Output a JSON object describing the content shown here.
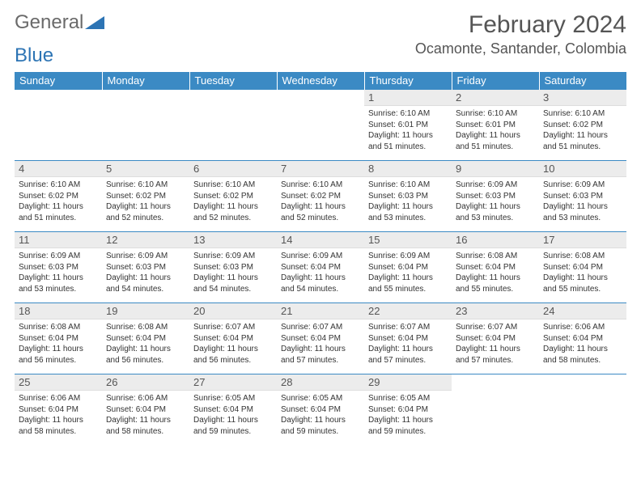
{
  "logo": {
    "text_general": "General",
    "text_blue": "Blue",
    "triangle_color": "#2d74b4"
  },
  "header": {
    "month_title": "February 2024",
    "location": "Ocamonte, Santander, Colombia"
  },
  "styling": {
    "header_bg": "#3b8ac4",
    "header_text": "#ffffff",
    "daynum_bg": "#ececec",
    "row_border": "#3b8ac4",
    "body_text": "#333333",
    "title_color": "#555555",
    "title_fontsize": 30,
    "location_fontsize": 18,
    "dayheader_fontsize": 13,
    "cell_fontsize": 10
  },
  "day_headers": [
    "Sunday",
    "Monday",
    "Tuesday",
    "Wednesday",
    "Thursday",
    "Friday",
    "Saturday"
  ],
  "weeks": [
    [
      {
        "empty": true
      },
      {
        "empty": true
      },
      {
        "empty": true
      },
      {
        "empty": true
      },
      {
        "day": "1",
        "sunrise": "Sunrise: 6:10 AM",
        "sunset": "Sunset: 6:01 PM",
        "daylight1": "Daylight: 11 hours",
        "daylight2": "and 51 minutes."
      },
      {
        "day": "2",
        "sunrise": "Sunrise: 6:10 AM",
        "sunset": "Sunset: 6:01 PM",
        "daylight1": "Daylight: 11 hours",
        "daylight2": "and 51 minutes."
      },
      {
        "day": "3",
        "sunrise": "Sunrise: 6:10 AM",
        "sunset": "Sunset: 6:02 PM",
        "daylight1": "Daylight: 11 hours",
        "daylight2": "and 51 minutes."
      }
    ],
    [
      {
        "day": "4",
        "sunrise": "Sunrise: 6:10 AM",
        "sunset": "Sunset: 6:02 PM",
        "daylight1": "Daylight: 11 hours",
        "daylight2": "and 51 minutes."
      },
      {
        "day": "5",
        "sunrise": "Sunrise: 6:10 AM",
        "sunset": "Sunset: 6:02 PM",
        "daylight1": "Daylight: 11 hours",
        "daylight2": "and 52 minutes."
      },
      {
        "day": "6",
        "sunrise": "Sunrise: 6:10 AM",
        "sunset": "Sunset: 6:02 PM",
        "daylight1": "Daylight: 11 hours",
        "daylight2": "and 52 minutes."
      },
      {
        "day": "7",
        "sunrise": "Sunrise: 6:10 AM",
        "sunset": "Sunset: 6:02 PM",
        "daylight1": "Daylight: 11 hours",
        "daylight2": "and 52 minutes."
      },
      {
        "day": "8",
        "sunrise": "Sunrise: 6:10 AM",
        "sunset": "Sunset: 6:03 PM",
        "daylight1": "Daylight: 11 hours",
        "daylight2": "and 53 minutes."
      },
      {
        "day": "9",
        "sunrise": "Sunrise: 6:09 AM",
        "sunset": "Sunset: 6:03 PM",
        "daylight1": "Daylight: 11 hours",
        "daylight2": "and 53 minutes."
      },
      {
        "day": "10",
        "sunrise": "Sunrise: 6:09 AM",
        "sunset": "Sunset: 6:03 PM",
        "daylight1": "Daylight: 11 hours",
        "daylight2": "and 53 minutes."
      }
    ],
    [
      {
        "day": "11",
        "sunrise": "Sunrise: 6:09 AM",
        "sunset": "Sunset: 6:03 PM",
        "daylight1": "Daylight: 11 hours",
        "daylight2": "and 53 minutes."
      },
      {
        "day": "12",
        "sunrise": "Sunrise: 6:09 AM",
        "sunset": "Sunset: 6:03 PM",
        "daylight1": "Daylight: 11 hours",
        "daylight2": "and 54 minutes."
      },
      {
        "day": "13",
        "sunrise": "Sunrise: 6:09 AM",
        "sunset": "Sunset: 6:03 PM",
        "daylight1": "Daylight: 11 hours",
        "daylight2": "and 54 minutes."
      },
      {
        "day": "14",
        "sunrise": "Sunrise: 6:09 AM",
        "sunset": "Sunset: 6:04 PM",
        "daylight1": "Daylight: 11 hours",
        "daylight2": "and 54 minutes."
      },
      {
        "day": "15",
        "sunrise": "Sunrise: 6:09 AM",
        "sunset": "Sunset: 6:04 PM",
        "daylight1": "Daylight: 11 hours",
        "daylight2": "and 55 minutes."
      },
      {
        "day": "16",
        "sunrise": "Sunrise: 6:08 AM",
        "sunset": "Sunset: 6:04 PM",
        "daylight1": "Daylight: 11 hours",
        "daylight2": "and 55 minutes."
      },
      {
        "day": "17",
        "sunrise": "Sunrise: 6:08 AM",
        "sunset": "Sunset: 6:04 PM",
        "daylight1": "Daylight: 11 hours",
        "daylight2": "and 55 minutes."
      }
    ],
    [
      {
        "day": "18",
        "sunrise": "Sunrise: 6:08 AM",
        "sunset": "Sunset: 6:04 PM",
        "daylight1": "Daylight: 11 hours",
        "daylight2": "and 56 minutes."
      },
      {
        "day": "19",
        "sunrise": "Sunrise: 6:08 AM",
        "sunset": "Sunset: 6:04 PM",
        "daylight1": "Daylight: 11 hours",
        "daylight2": "and 56 minutes."
      },
      {
        "day": "20",
        "sunrise": "Sunrise: 6:07 AM",
        "sunset": "Sunset: 6:04 PM",
        "daylight1": "Daylight: 11 hours",
        "daylight2": "and 56 minutes."
      },
      {
        "day": "21",
        "sunrise": "Sunrise: 6:07 AM",
        "sunset": "Sunset: 6:04 PM",
        "daylight1": "Daylight: 11 hours",
        "daylight2": "and 57 minutes."
      },
      {
        "day": "22",
        "sunrise": "Sunrise: 6:07 AM",
        "sunset": "Sunset: 6:04 PM",
        "daylight1": "Daylight: 11 hours",
        "daylight2": "and 57 minutes."
      },
      {
        "day": "23",
        "sunrise": "Sunrise: 6:07 AM",
        "sunset": "Sunset: 6:04 PM",
        "daylight1": "Daylight: 11 hours",
        "daylight2": "and 57 minutes."
      },
      {
        "day": "24",
        "sunrise": "Sunrise: 6:06 AM",
        "sunset": "Sunset: 6:04 PM",
        "daylight1": "Daylight: 11 hours",
        "daylight2": "and 58 minutes."
      }
    ],
    [
      {
        "day": "25",
        "sunrise": "Sunrise: 6:06 AM",
        "sunset": "Sunset: 6:04 PM",
        "daylight1": "Daylight: 11 hours",
        "daylight2": "and 58 minutes."
      },
      {
        "day": "26",
        "sunrise": "Sunrise: 6:06 AM",
        "sunset": "Sunset: 6:04 PM",
        "daylight1": "Daylight: 11 hours",
        "daylight2": "and 58 minutes."
      },
      {
        "day": "27",
        "sunrise": "Sunrise: 6:05 AM",
        "sunset": "Sunset: 6:04 PM",
        "daylight1": "Daylight: 11 hours",
        "daylight2": "and 59 minutes."
      },
      {
        "day": "28",
        "sunrise": "Sunrise: 6:05 AM",
        "sunset": "Sunset: 6:04 PM",
        "daylight1": "Daylight: 11 hours",
        "daylight2": "and 59 minutes."
      },
      {
        "day": "29",
        "sunrise": "Sunrise: 6:05 AM",
        "sunset": "Sunset: 6:04 PM",
        "daylight1": "Daylight: 11 hours",
        "daylight2": "and 59 minutes."
      },
      {
        "empty": true
      },
      {
        "empty": true
      }
    ]
  ]
}
